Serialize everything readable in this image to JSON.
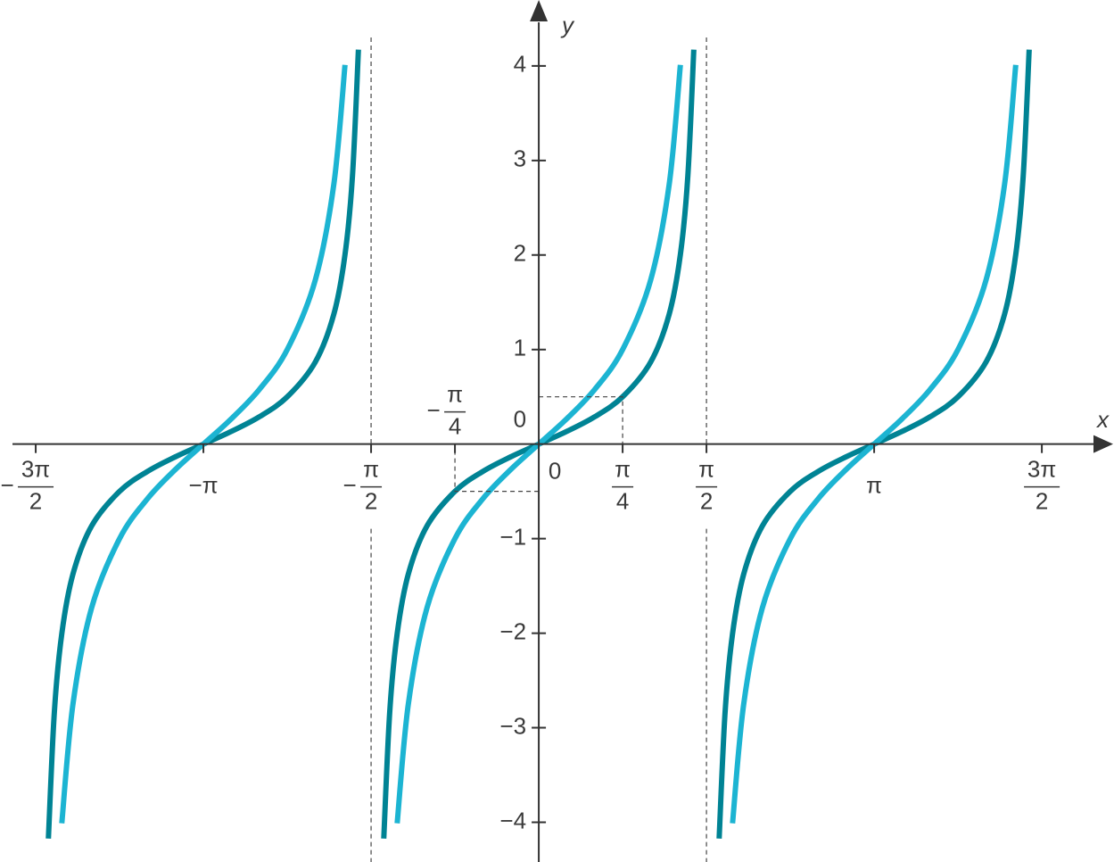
{
  "chart_data": {
    "type": "line",
    "x_label": "x",
    "y_label": "y",
    "xlim": [
      -4.93,
      5.38
    ],
    "ylim": [
      -4.42,
      4.65
    ],
    "xticks": [
      {
        "value": -4.7124,
        "label": "−3π/2"
      },
      {
        "value": -3.1416,
        "label": "−π"
      },
      {
        "value": -1.5708,
        "label": "−π/2"
      },
      {
        "value": -0.7854,
        "label": "−π/4"
      },
      0,
      {
        "value": 0.7854,
        "label": "π/4"
      },
      {
        "value": 1.5708,
        "label": "π/2"
      },
      {
        "value": 3.1416,
        "label": "π"
      },
      {
        "value": 4.7124,
        "label": "3π/2"
      }
    ],
    "yticks": [
      -4,
      -3,
      -2,
      -1,
      0,
      1,
      2,
      3,
      4
    ],
    "asymptotes": [
      -1.5708,
      1.5708
    ],
    "guides": [
      {
        "x": 0.7854,
        "y": 0.5
      },
      {
        "x": -0.7854,
        "y": -0.5
      }
    ],
    "x": [
      -4.5937,
      -4.5379,
      -4.4681,
      -4.3633,
      -4.1888,
      -3.927,
      -3.6652,
      -3.4034,
      -3.1416,
      -2.8798,
      -2.618,
      -2.3562,
      -2.0944,
      -1.9199,
      -1.8151,
      -1.7453,
      -1.6895,
      -1.5708,
      -1.4521,
      -1.3963,
      -1.3265,
      -1.2217,
      -1.0472,
      -0.7854,
      -0.5236,
      -0.2618,
      0,
      0.2618,
      0.5236,
      0.7854,
      1.0472,
      1.2217,
      1.3265,
      1.3963,
      1.4521,
      1.5708,
      1.6895,
      1.7453,
      1.8151,
      1.9199,
      2.0944,
      2.3562,
      2.618,
      2.8798,
      3.1416,
      3.4034,
      3.6652,
      3.927,
      4.1888,
      4.3633,
      4.4681,
      4.5379,
      4.5937
    ],
    "series": [
      {
        "color": "#1cb4d2",
        "values": [
          null,
          null,
          -4.0108,
          -2.7475,
          -1.7321,
          -1,
          -0.5774,
          -0.2679,
          0,
          0.2679,
          0.5774,
          1,
          1.7321,
          2.7475,
          4.0108,
          null,
          null,
          null,
          null,
          null,
          -4.0108,
          -2.7475,
          -1.7321,
          -1,
          -0.5774,
          -0.2679,
          0,
          0.2679,
          0.5774,
          1,
          1.7321,
          2.7475,
          4.0108,
          null,
          null,
          null,
          null,
          null,
          -4.0108,
          -2.7475,
          -1.7321,
          -1,
          -0.5774,
          -0.2679,
          0,
          0.2679,
          0.5774,
          1,
          1.7321,
          2.7475,
          4.0108,
          null,
          null
        ]
      },
      {
        "color": "#008394",
        "values": [
          -4.1725,
          -2.8356,
          -2.0054,
          -1.3737,
          -0.866,
          -0.5,
          -0.2887,
          -0.134,
          0,
          0.134,
          0.2887,
          0.5,
          0.866,
          1.3737,
          2.0054,
          2.8356,
          4.1725,
          null,
          -4.1725,
          -2.8356,
          -2.0054,
          -1.3737,
          -0.866,
          -0.5,
          -0.2887,
          -0.134,
          0,
          0.134,
          0.2887,
          0.5,
          0.866,
          1.3737,
          2.0054,
          2.8356,
          4.1725,
          null,
          -4.1725,
          -2.8356,
          -2.0054,
          -1.3737,
          -0.866,
          -0.5,
          -0.2887,
          -0.134,
          0,
          0.134,
          0.2887,
          0.5,
          0.866,
          1.3737,
          2.0054,
          2.8356,
          4.1725
        ]
      }
    ]
  }
}
